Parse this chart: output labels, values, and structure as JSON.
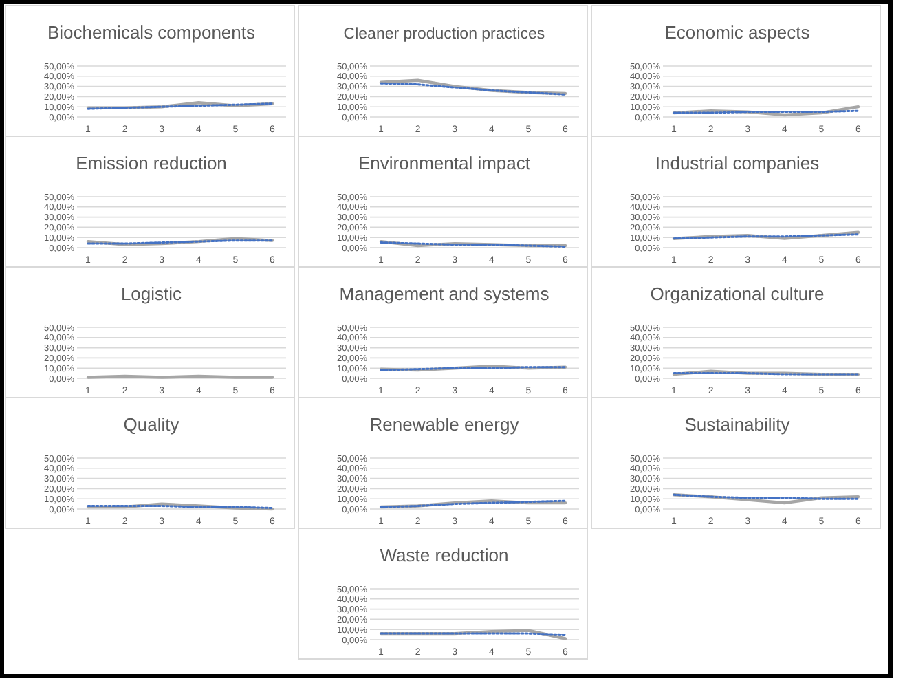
{
  "chart_data": [
    {
      "type": "line",
      "title": "Biochemicals components",
      "categories": [
        "1",
        "2",
        "3",
        "4",
        "5",
        "6"
      ],
      "series": [
        {
          "color": "#a6a6a6",
          "line_style": "solid",
          "values": [
            9,
            9,
            10,
            14,
            11,
            13
          ]
        },
        {
          "color": "#4472c4",
          "line_style": "dotted",
          "values": [
            8,
            9,
            10,
            11,
            12,
            13
          ]
        }
      ],
      "ylim": [
        0,
        50
      ],
      "yticks": [
        {
          "value": 0,
          "label": "0,00%"
        },
        {
          "value": 10,
          "label": "10,00%"
        },
        {
          "value": 20,
          "label": "20,00%"
        },
        {
          "value": 30,
          "label": "30,00%"
        },
        {
          "value": 40,
          "label": "40,00%"
        },
        {
          "value": 50,
          "label": "50,00%"
        }
      ],
      "grid": "y",
      "marker": "none"
    },
    {
      "type": "line",
      "title": "Cleaner production practices",
      "categories": [
        "1",
        "2",
        "3",
        "4",
        "5",
        "6"
      ],
      "series": [
        {
          "color": "#a6a6a6",
          "line_style": "solid",
          "values": [
            34,
            36,
            30,
            26,
            24,
            23
          ]
        },
        {
          "color": "#4472c4",
          "line_style": "dotted",
          "values": [
            33,
            32,
            29,
            26,
            24,
            22
          ]
        }
      ],
      "ylim": [
        0,
        50
      ],
      "yticks": [
        {
          "value": 0,
          "label": "0,00%"
        },
        {
          "value": 10,
          "label": "10,00%"
        },
        {
          "value": 20,
          "label": "20,00%"
        },
        {
          "value": 30,
          "label": "30,00%"
        },
        {
          "value": 40,
          "label": "40,00%"
        },
        {
          "value": 50,
          "label": "50,00%"
        }
      ],
      "grid": "y",
      "marker": "none"
    },
    {
      "type": "line",
      "title": "Economic aspects",
      "categories": [
        "1",
        "2",
        "3",
        "4",
        "5",
        "6"
      ],
      "series": [
        {
          "color": "#a6a6a6",
          "line_style": "solid",
          "values": [
            4,
            6,
            5,
            2,
            4,
            10
          ]
        },
        {
          "color": "#4472c4",
          "line_style": "dotted",
          "values": [
            4,
            4,
            5,
            5,
            5,
            6
          ]
        }
      ],
      "ylim": [
        0,
        50
      ],
      "yticks": [
        {
          "value": 0,
          "label": "0,00%"
        },
        {
          "value": 10,
          "label": "10,00%"
        },
        {
          "value": 20,
          "label": "20,00%"
        },
        {
          "value": 30,
          "label": "30,00%"
        },
        {
          "value": 40,
          "label": "40,00%"
        },
        {
          "value": 50,
          "label": "50,00%"
        }
      ],
      "grid": "y",
      "marker": "none"
    },
    {
      "type": "line",
      "title": "Emission reduction",
      "categories": [
        "1",
        "2",
        "3",
        "4",
        "5",
        "6"
      ],
      "series": [
        {
          "color": "#a6a6a6",
          "line_style": "solid",
          "values": [
            6,
            3,
            4,
            6,
            9,
            7
          ]
        },
        {
          "color": "#4472c4",
          "line_style": "dotted",
          "values": [
            4,
            4,
            5,
            6,
            7,
            7
          ]
        }
      ],
      "ylim": [
        0,
        50
      ],
      "yticks": [
        {
          "value": 0,
          "label": "0,00%"
        },
        {
          "value": 10,
          "label": "10,00%"
        },
        {
          "value": 20,
          "label": "20,00%"
        },
        {
          "value": 30,
          "label": "30,00%"
        },
        {
          "value": 40,
          "label": "40,00%"
        },
        {
          "value": 50,
          "label": "50,00%"
        }
      ],
      "grid": "y",
      "marker": "none"
    },
    {
      "type": "line",
      "title": "Environmental impact",
      "categories": [
        "1",
        "2",
        "3",
        "4",
        "5",
        "6"
      ],
      "series": [
        {
          "color": "#a6a6a6",
          "line_style": "solid",
          "values": [
            6,
            2,
            4,
            3,
            2,
            2
          ]
        },
        {
          "color": "#4472c4",
          "line_style": "dotted",
          "values": [
            5,
            4,
            3,
            3,
            2,
            1
          ]
        }
      ],
      "ylim": [
        0,
        50
      ],
      "yticks": [
        {
          "value": 0,
          "label": "0,00%"
        },
        {
          "value": 10,
          "label": "10,00%"
        },
        {
          "value": 20,
          "label": "20,00%"
        },
        {
          "value": 30,
          "label": "30,00%"
        },
        {
          "value": 40,
          "label": "40,00%"
        },
        {
          "value": 50,
          "label": "50,00%"
        }
      ],
      "grid": "y",
      "marker": "none"
    },
    {
      "type": "line",
      "title": "Industrial companies",
      "categories": [
        "1",
        "2",
        "3",
        "4",
        "5",
        "6"
      ],
      "series": [
        {
          "color": "#a6a6a6",
          "line_style": "solid",
          "values": [
            9,
            11,
            12,
            9,
            12,
            15
          ]
        },
        {
          "color": "#4472c4",
          "line_style": "dotted",
          "values": [
            9,
            10,
            11,
            11,
            12,
            13
          ]
        }
      ],
      "ylim": [
        0,
        50
      ],
      "yticks": [
        {
          "value": 0,
          "label": "0,00%"
        },
        {
          "value": 10,
          "label": "10,00%"
        },
        {
          "value": 20,
          "label": "20,00%"
        },
        {
          "value": 30,
          "label": "30,00%"
        },
        {
          "value": 40,
          "label": "40,00%"
        },
        {
          "value": 50,
          "label": "50,00%"
        }
      ],
      "grid": "y",
      "marker": "none"
    },
    {
      "type": "line",
      "title": "Logistic",
      "categories": [
        "1",
        "2",
        "3",
        "4",
        "5",
        "6"
      ],
      "series": [
        {
          "color": "#a6a6a6",
          "line_style": "solid",
          "values": [
            1,
            2,
            1,
            2,
            1,
            1
          ]
        }
      ],
      "ylim": [
        0,
        50
      ],
      "yticks": [
        {
          "value": 0,
          "label": "0,00%"
        },
        {
          "value": 10,
          "label": "10,00%"
        },
        {
          "value": 20,
          "label": "20,00%"
        },
        {
          "value": 30,
          "label": "30,00%"
        },
        {
          "value": 40,
          "label": "40,00%"
        },
        {
          "value": 50,
          "label": "50,00%"
        }
      ],
      "grid": "y",
      "marker": "none"
    },
    {
      "type": "line",
      "title": "Management and systems",
      "categories": [
        "1",
        "2",
        "3",
        "4",
        "5",
        "6"
      ],
      "series": [
        {
          "color": "#a6a6a6",
          "line_style": "solid",
          "values": [
            9,
            8,
            10,
            12,
            10,
            11
          ]
        },
        {
          "color": "#4472c4",
          "line_style": "dotted",
          "values": [
            8,
            9,
            10,
            10,
            11,
            11
          ]
        }
      ],
      "ylim": [
        0,
        50
      ],
      "yticks": [
        {
          "value": 0,
          "label": "0,00%"
        },
        {
          "value": 10,
          "label": "10,00%"
        },
        {
          "value": 20,
          "label": "20,00%"
        },
        {
          "value": 30,
          "label": "30,00%"
        },
        {
          "value": 40,
          "label": "40,00%"
        },
        {
          "value": 50,
          "label": "50,00%"
        }
      ],
      "grid": "y",
      "marker": "none"
    },
    {
      "type": "line",
      "title": "Organizational culture",
      "categories": [
        "1",
        "2",
        "3",
        "4",
        "5",
        "6"
      ],
      "series": [
        {
          "color": "#a6a6a6",
          "line_style": "solid",
          "values": [
            4,
            7,
            5,
            5,
            4,
            4
          ]
        },
        {
          "color": "#4472c4",
          "line_style": "dotted",
          "values": [
            5,
            5,
            5,
            4,
            4,
            4
          ]
        }
      ],
      "ylim": [
        0,
        50
      ],
      "yticks": [
        {
          "value": 0,
          "label": "0,00%"
        },
        {
          "value": 10,
          "label": "10,00%"
        },
        {
          "value": 20,
          "label": "20,00%"
        },
        {
          "value": 30,
          "label": "30,00%"
        },
        {
          "value": 40,
          "label": "40,00%"
        },
        {
          "value": 50,
          "label": "50,00%"
        }
      ],
      "grid": "y",
      "marker": "none"
    },
    {
      "type": "line",
      "title": "Quality",
      "categories": [
        "1",
        "2",
        "3",
        "4",
        "5",
        "6"
      ],
      "series": [
        {
          "color": "#a6a6a6",
          "line_style": "solid",
          "values": [
            2,
            2,
            5,
            3,
            1,
            0
          ]
        },
        {
          "color": "#4472c4",
          "line_style": "dotted",
          "values": [
            3,
            3,
            3,
            2,
            2,
            1
          ]
        }
      ],
      "ylim": [
        0,
        50
      ],
      "yticks": [
        {
          "value": 0,
          "label": "0,00%"
        },
        {
          "value": 10,
          "label": "10,00%"
        },
        {
          "value": 20,
          "label": "20,00%"
        },
        {
          "value": 30,
          "label": "30,00%"
        },
        {
          "value": 40,
          "label": "40,00%"
        },
        {
          "value": 50,
          "label": "50,00%"
        }
      ],
      "grid": "y",
      "marker": "none"
    },
    {
      "type": "line",
      "title": "Renewable energy",
      "categories": [
        "1",
        "2",
        "3",
        "4",
        "5",
        "6"
      ],
      "series": [
        {
          "color": "#a6a6a6",
          "line_style": "solid",
          "values": [
            2,
            3,
            6,
            8,
            6,
            6
          ]
        },
        {
          "color": "#4472c4",
          "line_style": "dotted",
          "values": [
            2,
            3,
            5,
            6,
            7,
            8
          ]
        }
      ],
      "ylim": [
        0,
        50
      ],
      "yticks": [
        {
          "value": 0,
          "label": "0,00%"
        },
        {
          "value": 10,
          "label": "10,00%"
        },
        {
          "value": 20,
          "label": "20,00%"
        },
        {
          "value": 30,
          "label": "30,00%"
        },
        {
          "value": 40,
          "label": "40,00%"
        },
        {
          "value": 50,
          "label": "50,00%"
        }
      ],
      "grid": "y",
      "marker": "none"
    },
    {
      "type": "line",
      "title": "Sustainability",
      "categories": [
        "1",
        "2",
        "3",
        "4",
        "5",
        "6"
      ],
      "series": [
        {
          "color": "#a6a6a6",
          "line_style": "solid",
          "values": [
            14,
            12,
            9,
            6,
            11,
            12
          ]
        },
        {
          "color": "#4472c4",
          "line_style": "dotted",
          "values": [
            14,
            12,
            11,
            11,
            10,
            10
          ]
        }
      ],
      "ylim": [
        0,
        50
      ],
      "yticks": [
        {
          "value": 0,
          "label": "0,00%"
        },
        {
          "value": 10,
          "label": "10,00%"
        },
        {
          "value": 20,
          "label": "20,00%"
        },
        {
          "value": 30,
          "label": "30,00%"
        },
        {
          "value": 40,
          "label": "40,00%"
        },
        {
          "value": 50,
          "label": "50,00%"
        }
      ],
      "grid": "y",
      "marker": "none"
    },
    {
      "type": "line",
      "title": "Waste reduction",
      "categories": [
        "1",
        "2",
        "3",
        "4",
        "5",
        "6"
      ],
      "series": [
        {
          "color": "#a6a6a6",
          "line_style": "solid",
          "values": [
            6,
            6,
            6,
            8,
            9,
            1
          ]
        },
        {
          "color": "#4472c4",
          "line_style": "dotted",
          "values": [
            6,
            6,
            6,
            6,
            6,
            5
          ]
        }
      ],
      "ylim": [
        0,
        50
      ],
      "yticks": [
        {
          "value": 0,
          "label": "0,00%"
        },
        {
          "value": 10,
          "label": "10,00%"
        },
        {
          "value": 20,
          "label": "20,00%"
        },
        {
          "value": 30,
          "label": "30,00%"
        },
        {
          "value": 40,
          "label": "40,00%"
        },
        {
          "value": 50,
          "label": "50,00%"
        }
      ],
      "grid": "y",
      "marker": "none"
    }
  ]
}
